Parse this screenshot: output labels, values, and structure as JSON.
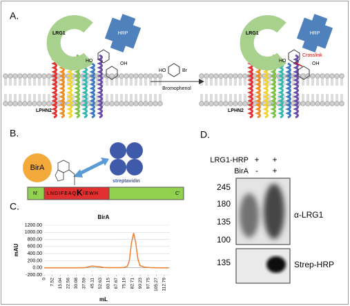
{
  "panel_a": {
    "label": "A.",
    "left": {
      "lrg1": "LRG1",
      "hrp": "HRP",
      "ho": "HO",
      "oh": "OH",
      "lphn2": "LPHN2"
    },
    "reagent": {
      "ho": "HO",
      "br": "Br",
      "name": "Bromophenol"
    },
    "right": {
      "lrg1": "LRG1",
      "hrp": "HRP",
      "crosslink": "Crosslink",
      "ho": "HO",
      "oh": "OH",
      "lphn2": "LPHN2"
    }
  },
  "panel_b": {
    "label": "B.",
    "bira": "BirA",
    "streptavidin": "streptavidin",
    "n_term": "N'",
    "c_term": "C'",
    "sequence_start": "LNDIFEAQ",
    "sequence_k": "K",
    "sequence_end": "IEWH"
  },
  "panel_c": {
    "label": "C.",
    "chart_data": {
      "type": "line",
      "title": "BirA",
      "x_label": "mL",
      "y_label": "mAU",
      "color": "#ed7d31",
      "x": [
        0,
        10,
        20,
        30,
        38,
        42,
        45,
        48,
        52,
        56,
        60,
        65,
        70,
        75,
        78,
        80,
        82,
        84,
        86,
        88,
        90,
        94,
        100,
        110,
        117
      ],
      "values": [
        0,
        0,
        0,
        0,
        5,
        30,
        50,
        40,
        30,
        10,
        5,
        5,
        5,
        10,
        40,
        200,
        700,
        980,
        700,
        250,
        60,
        20,
        5,
        0,
        0
      ],
      "xlim": [
        0,
        118
      ],
      "xticks": [
        0,
        7.52,
        15.04,
        22.56,
        30.08,
        37.59,
        45.11,
        52.63,
        60.15,
        67.67,
        75.19,
        82.71,
        90.23,
        97.75,
        105.27,
        112.79
      ],
      "ylim": [
        -200,
        1200
      ],
      "yticks": [
        {
          "value": 1200,
          "label": "1200.00"
        },
        {
          "value": 1000,
          "label": "1000.00"
        },
        {
          "value": 800,
          "label": "800.00"
        },
        {
          "value": 600,
          "label": "600.00"
        },
        {
          "value": 400,
          "label": "400.00"
        },
        {
          "value": 200,
          "label": "200.00"
        },
        {
          "value": 0,
          "label": "0.00"
        },
        {
          "value": -200,
          "label": "-200.00"
        }
      ],
      "grid": true
    }
  },
  "panel_d": {
    "label": "D.",
    "conditions": [
      {
        "name": "LRG1-HRP",
        "lanes": [
          "+",
          "+"
        ]
      },
      {
        "name": "BirA",
        "lanes": [
          "-",
          "+"
        ]
      }
    ],
    "blot_top": {
      "markers": [
        245,
        180,
        135,
        100
      ],
      "antibody": "α-LRG1"
    },
    "blot_bottom": {
      "markers": [
        135
      ],
      "antibody": "Strep-HRP"
    }
  }
}
